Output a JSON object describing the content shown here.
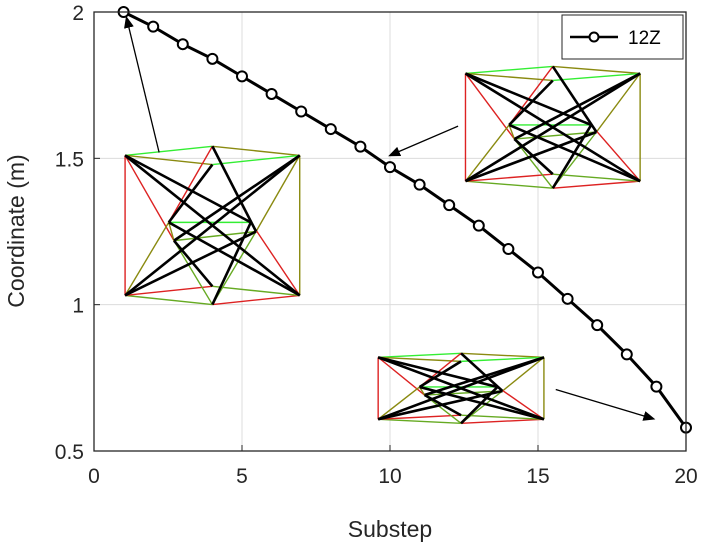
{
  "chart_data": {
    "type": "line",
    "xlabel": "Substep",
    "ylabel": "Coordinate (m)",
    "xlim": [
      0,
      20
    ],
    "ylim": [
      0.5,
      2
    ],
    "xticks": [
      "0",
      "5",
      "10",
      "15",
      "20"
    ],
    "yticks": [
      "0.5",
      "1",
      "1.5",
      "2"
    ],
    "grid": true,
    "legend_position": "top-right",
    "series": [
      {
        "name": "12Z",
        "color": "#000000",
        "marker": "circle",
        "x": [
          1,
          2,
          3,
          4,
          5,
          6,
          7,
          8,
          9,
          10,
          11,
          12,
          13,
          14,
          15,
          16,
          17,
          18,
          19,
          20
        ],
        "y": [
          2.0,
          1.95,
          1.89,
          1.84,
          1.78,
          1.72,
          1.66,
          1.6,
          1.54,
          1.47,
          1.41,
          1.34,
          1.27,
          1.19,
          1.11,
          1.02,
          0.93,
          0.83,
          0.72,
          0.58
        ]
      }
    ],
    "annotations": [
      {
        "type": "arrow",
        "from": [
          2.2,
          1.52
        ],
        "to": [
          1.1,
          1.98
        ]
      },
      {
        "type": "arrow",
        "from": [
          12.3,
          1.61
        ],
        "to": [
          10.0,
          1.51
        ]
      },
      {
        "type": "arrow",
        "from": [
          15.6,
          0.71
        ],
        "to": [
          18.9,
          0.61
        ]
      }
    ],
    "insets": [
      {
        "name": "tensegrity-stage-1",
        "center": [
          4.0,
          1.25
        ],
        "size": [
          5.9,
          0.52
        ]
      },
      {
        "name": "tensegrity-stage-2",
        "center": [
          15.5,
          1.59
        ],
        "size": [
          5.9,
          0.4
        ]
      },
      {
        "name": "tensegrity-stage-3",
        "center": [
          12.4,
          0.705
        ],
        "size": [
          5.6,
          0.23
        ]
      }
    ],
    "colors": {
      "strut": "#000000",
      "cable_green": "#33ee33",
      "cable_red": "#dd2222",
      "cable_olive": "#8a8a10",
      "cable_yellowgreen": "#66aa22",
      "grid": "#dcdcdc",
      "axis": "#262626"
    }
  }
}
